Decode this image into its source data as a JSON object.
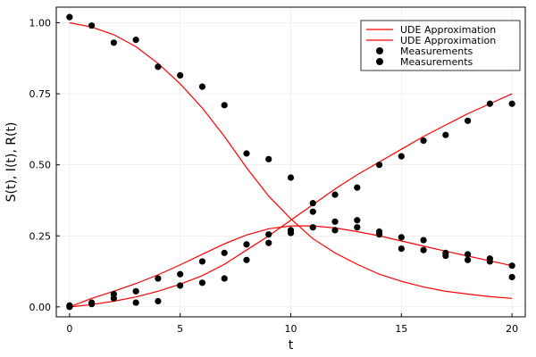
{
  "chart_data": {
    "type": "scatter",
    "xlabel": "t",
    "ylabel": "S(t), I(t), R(t)",
    "xlim": [
      -0.6,
      20.6
    ],
    "ylim": [
      -0.035,
      1.055
    ],
    "xticks": [
      0,
      5,
      10,
      15,
      20
    ],
    "xtick_labels": [
      "0",
      "5",
      "10",
      "15",
      "20"
    ],
    "yticks": [
      0,
      0.25,
      0.5,
      0.75,
      1.0
    ],
    "ytick_labels": [
      "0.00",
      "0.25",
      "0.50",
      "0.75",
      "1.00"
    ],
    "grid": true,
    "legend_position": "top-right",
    "series": [
      {
        "name": "UDE Approximation",
        "kind": "line",
        "color": "#ff0000",
        "x": [
          0,
          1,
          2,
          3,
          4,
          5,
          6,
          7,
          8,
          9,
          10,
          11,
          12,
          13,
          14,
          15,
          16,
          17,
          18,
          19,
          20
        ],
        "y": [
          1.0,
          0.985,
          0.958,
          0.916,
          0.857,
          0.785,
          0.7,
          0.6,
          0.49,
          0.39,
          0.31,
          0.24,
          0.19,
          0.15,
          0.115,
          0.09,
          0.07,
          0.055,
          0.045,
          0.036,
          0.03
        ]
      },
      {
        "name": "UDE Approximation",
        "kind": "line",
        "color": "#ff0000",
        "x": [
          0,
          1,
          2,
          3,
          4,
          5,
          6,
          7,
          8,
          9,
          10,
          11,
          12,
          13,
          14,
          15,
          16,
          17,
          18,
          19,
          20
        ],
        "y": [
          0.0,
          0.03,
          0.055,
          0.082,
          0.113,
          0.148,
          0.185,
          0.222,
          0.253,
          0.275,
          0.285,
          0.285,
          0.278,
          0.265,
          0.25,
          0.232,
          0.214,
          0.196,
          0.179,
          0.162,
          0.145
        ]
      },
      {
        "name": "",
        "kind": "line",
        "color": "#ff0000",
        "legend": false,
        "x": [
          0,
          1,
          2,
          3,
          4,
          5,
          6,
          7,
          8,
          9,
          10,
          11,
          12,
          13,
          14,
          15,
          16,
          17,
          18,
          19,
          20
        ],
        "y": [
          0.0,
          0.008,
          0.02,
          0.035,
          0.055,
          0.08,
          0.11,
          0.15,
          0.2,
          0.25,
          0.305,
          0.36,
          0.415,
          0.465,
          0.51,
          0.555,
          0.6,
          0.64,
          0.68,
          0.715,
          0.75
        ]
      },
      {
        "name": "Measurements",
        "kind": "scatter",
        "color": "#000000",
        "x": [
          0,
          1,
          2,
          3,
          4,
          5,
          6,
          7,
          8,
          9,
          10,
          11,
          12,
          13,
          14,
          15,
          16,
          17,
          18,
          19,
          20
        ],
        "y": [
          1.02,
          0.99,
          0.93,
          0.94,
          0.845,
          0.815,
          0.775,
          0.71,
          0.54,
          0.52,
          0.455,
          0.365,
          0.3,
          0.28,
          0.265,
          0.245,
          0.235,
          0.19,
          0.185,
          0.17,
          0.145
        ]
      },
      {
        "name": "Measurements",
        "kind": "scatter",
        "color": "#000000",
        "x": [
          0,
          1,
          2,
          3,
          4,
          5,
          6,
          7,
          8,
          9,
          10,
          11,
          12,
          13,
          14,
          15,
          16,
          17,
          18,
          19,
          20
        ],
        "y": [
          0.005,
          0.015,
          0.045,
          0.055,
          0.1,
          0.115,
          0.16,
          0.19,
          0.22,
          0.255,
          0.27,
          0.28,
          0.27,
          0.305,
          0.255,
          0.205,
          0.2,
          0.18,
          0.165,
          0.16,
          0.105
        ]
      },
      {
        "name": "",
        "kind": "scatter",
        "color": "#000000",
        "legend": false,
        "x": [
          0,
          1,
          2,
          3,
          4,
          5,
          6,
          7,
          8,
          9,
          10,
          11,
          12,
          13,
          14,
          15,
          16,
          17,
          18,
          19,
          20
        ],
        "y": [
          0.0,
          0.01,
          0.03,
          0.015,
          0.02,
          0.075,
          0.085,
          0.1,
          0.165,
          0.225,
          0.26,
          0.335,
          0.395,
          0.42,
          0.5,
          0.53,
          0.585,
          0.605,
          0.655,
          0.715,
          0.715
        ]
      }
    ]
  }
}
